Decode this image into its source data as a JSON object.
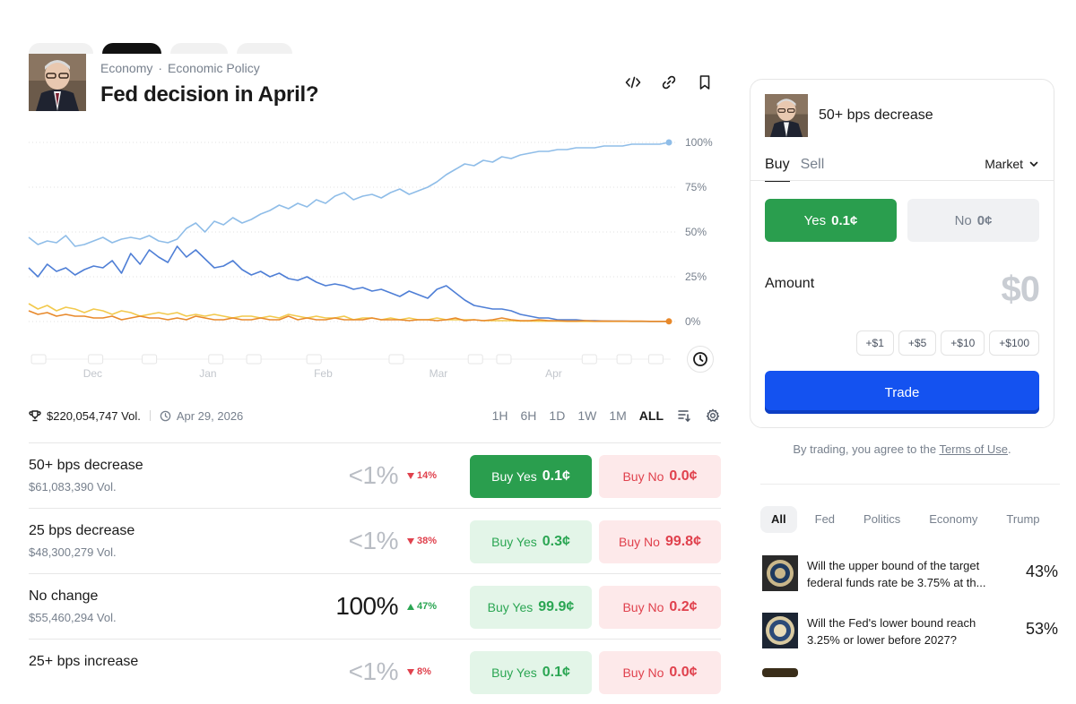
{
  "market": {
    "breadcrumb": [
      "Economy",
      "Economic Policy"
    ],
    "breadcrumb_separator": "·",
    "title": "Fed decision in April?",
    "volume": "$220,054,747 Vol.",
    "end_date": "Apr 29, 2026",
    "ranges": [
      "1H",
      "6H",
      "1D",
      "1W",
      "1M",
      "ALL"
    ],
    "active_range": "ALL"
  },
  "chart_data": {
    "type": "line",
    "x_ticks": [
      "Dec",
      "Jan",
      "Feb",
      "Mar",
      "Apr"
    ],
    "y_ticks": [
      "100%",
      "75%",
      "50%",
      "25%",
      "0%"
    ],
    "ylim": [
      0,
      100
    ],
    "grid": "dotted horizontal",
    "series": [
      {
        "color": "#8fbde8",
        "values": [
          47,
          43,
          45,
          44,
          48,
          42,
          43,
          45,
          47,
          44,
          46,
          47,
          46,
          48,
          45,
          44,
          46,
          52,
          55,
          50,
          56,
          54,
          58,
          55,
          57,
          60,
          62,
          65,
          63,
          66,
          64,
          68,
          66,
          70,
          72,
          68,
          70,
          71,
          69,
          72,
          74,
          71,
          73,
          75,
          78,
          82,
          85,
          88,
          87,
          90,
          89,
          92,
          91,
          93,
          94,
          95,
          95,
          96,
          96,
          97,
          97,
          97,
          98,
          98,
          98,
          99,
          99,
          99,
          99,
          100
        ]
      },
      {
        "color": "#4f7fd6",
        "values": [
          30,
          25,
          32,
          28,
          30,
          26,
          29,
          31,
          30,
          34,
          27,
          38,
          32,
          40,
          36,
          33,
          42,
          36,
          40,
          35,
          30,
          31,
          34,
          29,
          26,
          28,
          25,
          27,
          24,
          23,
          25,
          22,
          20,
          21,
          20,
          18,
          19,
          17,
          18,
          16,
          14,
          17,
          15,
          13,
          18,
          20,
          16,
          12,
          9,
          8,
          7,
          7,
          6,
          4,
          3,
          2,
          2,
          1,
          1,
          1,
          0.5,
          0.5,
          0.3,
          0.2,
          0.2,
          0.1,
          0.1,
          0.1,
          0.1,
          0.1
        ]
      },
      {
        "color": "#f2c94c",
        "values": [
          10,
          7,
          9,
          6,
          8,
          7,
          5,
          7,
          6,
          4,
          6,
          5,
          3,
          4,
          5,
          4,
          5,
          3,
          4,
          3,
          4,
          3,
          2,
          3,
          3,
          2,
          3,
          2,
          4,
          3,
          2,
          3,
          2,
          2,
          3,
          1,
          2,
          2,
          1,
          2,
          1,
          2,
          1,
          1,
          2,
          1,
          1,
          1,
          1,
          0.5,
          0.5,
          0.5,
          0.5,
          0.3,
          0.3,
          0.2,
          0.2,
          0.2,
          0.1,
          0.1,
          0.1,
          0.1,
          0.1,
          0.1,
          0.1,
          0.1,
          0.1,
          0.1,
          0.1,
          0.1
        ]
      },
      {
        "color": "#e8892b",
        "values": [
          6,
          4,
          5,
          3,
          4,
          3,
          3,
          2,
          2,
          3,
          1,
          2,
          3,
          2,
          2,
          1,
          2,
          1,
          3,
          2,
          1,
          1,
          2,
          1,
          1,
          2,
          1,
          1,
          3,
          1,
          2,
          1,
          1,
          2,
          1,
          1,
          1,
          2,
          1,
          1,
          1,
          0.5,
          1,
          1,
          0.5,
          1,
          2,
          0.5,
          1,
          0.5,
          1,
          2,
          1,
          0.5,
          0.5,
          1,
          0.5,
          0.5,
          0.3,
          0.3,
          0.5,
          0.2,
          0.3,
          0.2,
          0.2,
          0.2,
          0.2,
          0.1,
          0.1,
          0.1
        ]
      }
    ]
  },
  "outcomes": [
    {
      "name": "50+ bps decrease",
      "volume": "$61,083,390 Vol.",
      "pct": "<1%",
      "change": "14%",
      "dir": "down",
      "yes_label": "Buy Yes",
      "yes_price": "0.1¢",
      "no_label": "Buy No",
      "no_price": "0.0¢",
      "selected": true
    },
    {
      "name": "25 bps decrease",
      "volume": "$48,300,279 Vol.",
      "pct": "<1%",
      "change": "38%",
      "dir": "down",
      "yes_label": "Buy Yes",
      "yes_price": "0.3¢",
      "no_label": "Buy No",
      "no_price": "99.8¢",
      "selected": false
    },
    {
      "name": "No change",
      "volume": "$55,460,294 Vol.",
      "pct": "100%",
      "change": "47%",
      "dir": "up",
      "yes_label": "Buy Yes",
      "yes_price": "99.9¢",
      "no_label": "Buy No",
      "no_price": "0.2¢",
      "selected": false
    },
    {
      "name": "25+ bps increase",
      "volume": "",
      "pct": "<1%",
      "change": "8%",
      "dir": "down",
      "yes_label": "Buy Yes",
      "yes_price": "0.1¢",
      "no_label": "Buy No",
      "no_price": "0.0¢",
      "selected": false
    }
  ],
  "trade": {
    "outcome_title": "50+ bps decrease",
    "tab_buy": "Buy",
    "tab_sell": "Sell",
    "order_type": "Market",
    "yes_label": "Yes",
    "yes_price": "0.1¢",
    "no_label": "No",
    "no_price": "0¢",
    "amount_label": "Amount",
    "amount_value": "$0",
    "quick_amounts": [
      "+$1",
      "+$5",
      "+$10",
      "+$100"
    ],
    "trade_button": "Trade",
    "terms_prefix": "By trading, you agree to the",
    "terms_link": "Terms of Use",
    "terms_suffix": "."
  },
  "related": {
    "filters": [
      "All",
      "Fed",
      "Politics",
      "Economy",
      "Trump"
    ],
    "active_filter": "All",
    "items": [
      {
        "question": "Will the upper bound of the target federal funds rate be 3.75% at th...",
        "pct": "43%"
      },
      {
        "question": "Will the Fed's lower bound reach 3.25% or lower before 2027?",
        "pct": "53%"
      }
    ]
  },
  "colors": {
    "yes_green": "#2a9e4e",
    "no_red": "#e0414d",
    "trade_blue": "#1452f0"
  }
}
